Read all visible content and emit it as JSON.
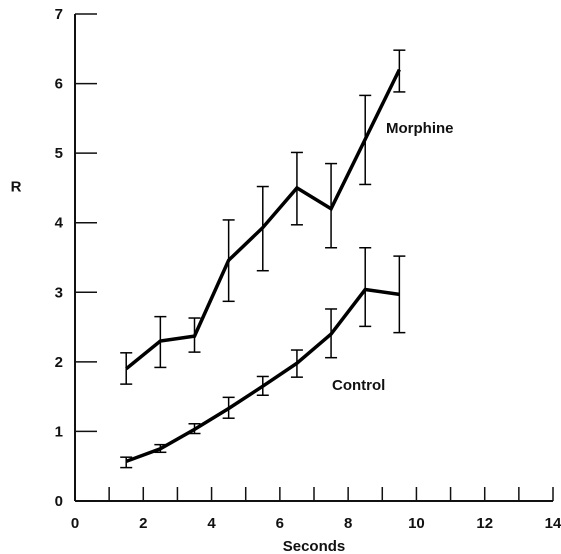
{
  "chart_data": {
    "type": "line",
    "xlabel": "Seconds",
    "ylabel": "R",
    "xlim": [
      0,
      14
    ],
    "ylim": [
      0,
      7
    ],
    "x_major_ticks": [
      0,
      2,
      4,
      6,
      8,
      10,
      12,
      14
    ],
    "x_minor_ticks": [
      1,
      3,
      5,
      7,
      9,
      11,
      13
    ],
    "y_ticks": [
      0,
      1,
      2,
      3,
      4,
      5,
      6,
      7
    ],
    "grid": false,
    "series": [
      {
        "name": "Morphine",
        "x": [
          1.5,
          2.5,
          3.5,
          4.5,
          5.5,
          6.5,
          7.5,
          8.5,
          9.5
        ],
        "y": [
          1.9,
          2.3,
          2.37,
          3.46,
          3.93,
          4.5,
          4.2,
          5.2,
          6.2
        ],
        "err_low": [
          1.68,
          1.92,
          2.14,
          2.87,
          3.31,
          3.97,
          3.64,
          4.55,
          5.88
        ],
        "err_high": [
          2.13,
          2.65,
          2.63,
          4.04,
          4.52,
          5.01,
          4.85,
          5.83,
          6.48
        ]
      },
      {
        "name": "Control",
        "x": [
          1.5,
          2.5,
          3.5,
          4.5,
          5.5,
          6.5,
          7.5,
          8.5,
          9.5
        ],
        "y": [
          0.57,
          0.75,
          1.03,
          1.33,
          1.65,
          1.98,
          2.4,
          3.04,
          2.97
        ],
        "err_low": [
          0.48,
          0.7,
          0.97,
          1.19,
          1.52,
          1.78,
          2.06,
          2.51,
          2.42
        ],
        "err_high": [
          0.63,
          0.81,
          1.11,
          1.49,
          1.79,
          2.17,
          2.76,
          3.64,
          3.52
        ]
      }
    ]
  }
}
